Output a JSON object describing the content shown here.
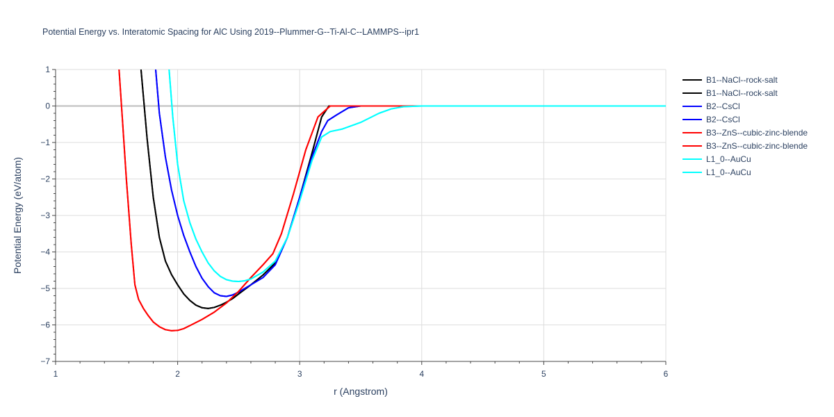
{
  "chart_data": {
    "type": "line",
    "title": "Potential Energy vs. Interatomic Spacing for AlC Using 2019--Plummer-G--Ti-Al-C--LAMMPS--ipr1",
    "xlabel": "r (Angstrom)",
    "ylabel": "Potential Energy (eV/atom)",
    "xlim": [
      1,
      6
    ],
    "ylim": [
      -7,
      1
    ],
    "xticks": [
      "1",
      "2",
      "3",
      "4",
      "5",
      "6"
    ],
    "yticks": [
      "1",
      "0",
      "−1",
      "−2",
      "−3",
      "−4",
      "−5",
      "−6",
      "−7"
    ],
    "grid": true,
    "legend_position": "right",
    "series": [
      {
        "name": "B1--NaCl--rock-salt",
        "color": "#000000",
        "x": [
          1.7,
          1.75,
          1.8,
          1.85,
          1.9,
          1.95,
          2.0,
          2.05,
          2.1,
          2.15,
          2.2,
          2.25,
          2.3,
          2.35,
          2.4,
          2.45,
          2.5,
          2.6,
          2.7,
          2.8,
          2.9,
          3.0,
          3.1,
          3.18,
          3.24,
          3.3,
          3.5,
          4.0,
          5.0,
          6.0
        ],
        "y": [
          1.0,
          -0.9,
          -2.5,
          -3.6,
          -4.25,
          -4.62,
          -4.9,
          -5.15,
          -5.33,
          -5.46,
          -5.53,
          -5.55,
          -5.52,
          -5.46,
          -5.38,
          -5.28,
          -5.15,
          -4.9,
          -4.63,
          -4.3,
          -3.6,
          -2.5,
          -1.3,
          -0.3,
          0.0,
          0.0,
          0.0,
          0.0,
          0.0,
          0.0
        ]
      },
      {
        "name": "B1--NaCl--rock-salt",
        "color": "#000000",
        "x": [
          1.7,
          1.75,
          1.8,
          1.85,
          1.9,
          1.95,
          2.0,
          2.05,
          2.1,
          2.15,
          2.2,
          2.25,
          2.3,
          2.35,
          2.4,
          2.45,
          2.5,
          2.6,
          2.7,
          2.8,
          2.9,
          3.0,
          3.1,
          3.18,
          3.24,
          3.3,
          3.5,
          4.0,
          5.0,
          6.0
        ],
        "y": [
          1.0,
          -0.9,
          -2.5,
          -3.6,
          -4.25,
          -4.62,
          -4.9,
          -5.15,
          -5.33,
          -5.46,
          -5.53,
          -5.55,
          -5.52,
          -5.46,
          -5.38,
          -5.28,
          -5.15,
          -4.9,
          -4.63,
          -4.3,
          -3.6,
          -2.5,
          -1.3,
          -0.3,
          0.0,
          0.0,
          0.0,
          0.0,
          0.0,
          0.0
        ]
      },
      {
        "name": "B2--CsCl",
        "color": "#0000ff",
        "x": [
          1.82,
          1.85,
          1.9,
          1.95,
          2.0,
          2.05,
          2.1,
          2.15,
          2.2,
          2.25,
          2.3,
          2.35,
          2.4,
          2.45,
          2.5,
          2.55,
          2.6,
          2.7,
          2.8,
          2.9,
          3.0,
          3.1,
          3.18,
          3.23,
          3.3,
          3.4,
          3.5,
          4.0,
          5.0,
          6.0
        ],
        "y": [
          1.0,
          -0.2,
          -1.4,
          -2.3,
          -3.0,
          -3.55,
          -4.0,
          -4.4,
          -4.72,
          -4.95,
          -5.12,
          -5.2,
          -5.22,
          -5.18,
          -5.1,
          -5.0,
          -4.9,
          -4.7,
          -4.35,
          -3.6,
          -2.5,
          -1.4,
          -0.7,
          -0.4,
          -0.25,
          -0.05,
          0.0,
          0.0,
          0.0,
          0.0
        ]
      },
      {
        "name": "B2--CsCl",
        "color": "#0000ff",
        "x": [
          1.82,
          1.85,
          1.9,
          1.95,
          2.0,
          2.05,
          2.1,
          2.15,
          2.2,
          2.25,
          2.3,
          2.35,
          2.4,
          2.45,
          2.5,
          2.55,
          2.6,
          2.7,
          2.8,
          2.9,
          3.0,
          3.1,
          3.18,
          3.23,
          3.3,
          3.4,
          3.5,
          4.0,
          5.0,
          6.0
        ],
        "y": [
          1.0,
          -0.2,
          -1.4,
          -2.3,
          -3.0,
          -3.55,
          -4.0,
          -4.4,
          -4.72,
          -4.95,
          -5.12,
          -5.2,
          -5.22,
          -5.18,
          -5.1,
          -5.0,
          -4.9,
          -4.7,
          -4.35,
          -3.6,
          -2.5,
          -1.4,
          -0.7,
          -0.4,
          -0.25,
          -0.05,
          0.0,
          0.0,
          0.0,
          0.0
        ]
      },
      {
        "name": "B3--ZnS--cubic-zinc-blende",
        "color": "#ff0000",
        "x": [
          1.52,
          1.55,
          1.58,
          1.62,
          1.65,
          1.68,
          1.72,
          1.76,
          1.8,
          1.85,
          1.9,
          1.95,
          2.0,
          2.05,
          2.1,
          2.2,
          2.3,
          2.4,
          2.5,
          2.6,
          2.7,
          2.78,
          2.85,
          2.95,
          3.05,
          3.15,
          3.25,
          3.5,
          4.0,
          5.0,
          6.0
        ],
        "y": [
          1.0,
          -0.5,
          -2.0,
          -3.8,
          -4.9,
          -5.3,
          -5.55,
          -5.75,
          -5.92,
          -6.05,
          -6.13,
          -6.16,
          -6.15,
          -6.1,
          -6.02,
          -5.85,
          -5.65,
          -5.4,
          -5.08,
          -4.7,
          -4.35,
          -4.05,
          -3.5,
          -2.4,
          -1.2,
          -0.3,
          0.0,
          0.0,
          0.0,
          0.0,
          0.0
        ]
      },
      {
        "name": "B3--ZnS--cubic-zinc-blende",
        "color": "#ff0000",
        "x": [
          1.52,
          1.55,
          1.58,
          1.62,
          1.65,
          1.68,
          1.72,
          1.76,
          1.8,
          1.85,
          1.9,
          1.95,
          2.0,
          2.05,
          2.1,
          2.2,
          2.3,
          2.4,
          2.5,
          2.6,
          2.7,
          2.78,
          2.85,
          2.95,
          3.05,
          3.15,
          3.25,
          3.5,
          4.0,
          5.0,
          6.0
        ],
        "y": [
          1.0,
          -0.5,
          -2.0,
          -3.8,
          -4.9,
          -5.3,
          -5.55,
          -5.75,
          -5.92,
          -6.05,
          -6.13,
          -6.16,
          -6.15,
          -6.1,
          -6.02,
          -5.85,
          -5.65,
          -5.4,
          -5.08,
          -4.7,
          -4.35,
          -4.05,
          -3.5,
          -2.4,
          -1.2,
          -0.3,
          0.0,
          0.0,
          0.0,
          0.0,
          0.0
        ]
      },
      {
        "name": "L1_0--AuCu",
        "color": "#00ffff",
        "x": [
          1.93,
          1.96,
          2.0,
          2.05,
          2.1,
          2.15,
          2.2,
          2.25,
          2.3,
          2.35,
          2.4,
          2.45,
          2.5,
          2.55,
          2.6,
          2.7,
          2.8,
          2.9,
          3.0,
          3.1,
          3.18,
          3.25,
          3.35,
          3.5,
          3.65,
          3.75,
          3.85,
          4.0,
          5.0,
          6.0
        ],
        "y": [
          1.0,
          -0.3,
          -1.6,
          -2.6,
          -3.2,
          -3.65,
          -4.0,
          -4.3,
          -4.52,
          -4.67,
          -4.76,
          -4.8,
          -4.81,
          -4.79,
          -4.74,
          -4.55,
          -4.25,
          -3.6,
          -2.6,
          -1.5,
          -0.85,
          -0.7,
          -0.63,
          -0.45,
          -0.2,
          -0.08,
          -0.02,
          0.0,
          0.0,
          0.0
        ]
      },
      {
        "name": "L1_0--AuCu",
        "color": "#00ffff",
        "x": [
          1.93,
          1.96,
          2.0,
          2.05,
          2.1,
          2.15,
          2.2,
          2.25,
          2.3,
          2.35,
          2.4,
          2.45,
          2.5,
          2.55,
          2.6,
          2.7,
          2.8,
          2.9,
          3.0,
          3.1,
          3.18,
          3.25,
          3.35,
          3.5,
          3.65,
          3.75,
          3.85,
          4.0,
          5.0,
          6.0
        ],
        "y": [
          1.0,
          -0.3,
          -1.6,
          -2.6,
          -3.2,
          -3.65,
          -4.0,
          -4.3,
          -4.52,
          -4.67,
          -4.76,
          -4.8,
          -4.81,
          -4.79,
          -4.74,
          -4.55,
          -4.25,
          -3.6,
          -2.6,
          -1.5,
          -0.85,
          -0.7,
          -0.63,
          -0.45,
          -0.2,
          -0.08,
          -0.02,
          0.0,
          0.0,
          0.0
        ]
      }
    ]
  }
}
